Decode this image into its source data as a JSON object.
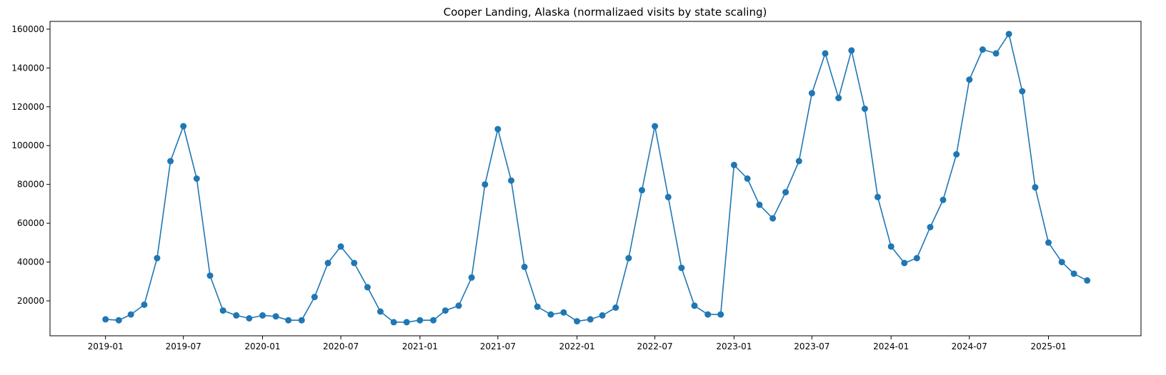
{
  "chart_data": {
    "type": "line",
    "title": "Cooper Landing, Alaska (normalizaed visits by state scaling)",
    "xlabel": "",
    "ylabel": "",
    "x_tick_labels": [
      "2019-01",
      "2019-07",
      "2020-01",
      "2020-07",
      "2021-01",
      "2021-07",
      "2022-01",
      "2022-07",
      "2023-01",
      "2023-07",
      "2024-01",
      "2024-07",
      "2025-01"
    ],
    "y_ticks": [
      20000,
      40000,
      60000,
      80000,
      100000,
      120000,
      140000,
      160000
    ],
    "xlim": [
      "2018-08-25",
      "2025-08-04"
    ],
    "ylim": [
      2000,
      164000
    ],
    "grid": false,
    "marker": "circle",
    "color": "#1f77b4",
    "series": [
      {
        "x": [
          "2019-01",
          "2019-02",
          "2019-03",
          "2019-04",
          "2019-05",
          "2019-06",
          "2019-07",
          "2019-08",
          "2019-09",
          "2019-10",
          "2019-11",
          "2019-12",
          "2020-01",
          "2020-02",
          "2020-03",
          "2020-04",
          "2020-05",
          "2020-06",
          "2020-07",
          "2020-08",
          "2020-09",
          "2020-10",
          "2020-11",
          "2020-12",
          "2021-01",
          "2021-02",
          "2021-03",
          "2021-04",
          "2021-05",
          "2021-06",
          "2021-07",
          "2021-08",
          "2021-09",
          "2021-10",
          "2021-11",
          "2021-12",
          "2022-01",
          "2022-02",
          "2022-03",
          "2022-04",
          "2022-05",
          "2022-06",
          "2022-07",
          "2022-08",
          "2022-09",
          "2022-10",
          "2022-11",
          "2022-12",
          "2023-01",
          "2023-02",
          "2023-03",
          "2023-04",
          "2023-05",
          "2023-06",
          "2023-07",
          "2023-08",
          "2023-09",
          "2023-10",
          "2023-11",
          "2023-12",
          "2024-01",
          "2024-02",
          "2024-03",
          "2024-04",
          "2024-05",
          "2024-06",
          "2024-07",
          "2024-08",
          "2024-09",
          "2024-10",
          "2024-11",
          "2024-12",
          "2025-01",
          "2025-02",
          "2025-03",
          "2025-04"
        ],
        "y": [
          10500,
          10000,
          13000,
          18000,
          42000,
          92000,
          110000,
          83000,
          33000,
          15000,
          12500,
          11000,
          12500,
          12000,
          10000,
          10000,
          22000,
          39500,
          48000,
          39500,
          27000,
          14500,
          9000,
          9000,
          10000,
          10000,
          15000,
          17500,
          32000,
          80000,
          108500,
          82000,
          37500,
          17000,
          13000,
          14000,
          9500,
          10500,
          12500,
          16500,
          42000,
          77000,
          110000,
          73500,
          37000,
          17500,
          13000,
          13000,
          90000,
          83000,
          69500,
          62500,
          76000,
          92000,
          127000,
          147500,
          124500,
          149000,
          119000,
          73500,
          48000,
          39500,
          42000,
          58000,
          72000,
          95500,
          134000,
          149500,
          147500,
          157500,
          128000,
          78500,
          50000,
          40000,
          34000,
          30500
        ]
      }
    ]
  }
}
